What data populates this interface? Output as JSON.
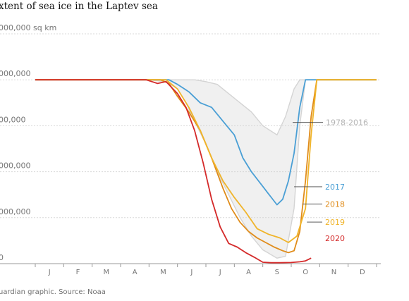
{
  "chart_data": {
    "type": "line",
    "title": "xtent of sea ice in the Laptev sea",
    "ylabel": "",
    "y_tick_labels": [
      {
        "value": 2500000,
        "label": "000,000 sq km"
      },
      {
        "value": 2000000,
        "label": "000,000"
      },
      {
        "value": 1500000,
        "label": "00,000"
      },
      {
        "value": 1000000,
        "label": "000,000"
      },
      {
        "value": 500000,
        "label": "000,000"
      },
      {
        "value": 0,
        "label": "0"
      }
    ],
    "ylim": [
      0,
      2500000
    ],
    "x_tick_labels": [
      "J",
      "F",
      "M",
      "A",
      "M",
      "J",
      "J",
      "A",
      "S",
      "O",
      "N",
      "D"
    ],
    "xlim": [
      0,
      12
    ],
    "grid": true,
    "colors": {
      "historical": "#d4d4d4",
      "2017": "#4a9fd5",
      "2018": "#e08c1a",
      "2019": "#f0b429",
      "2020": "#d42a2a",
      "grid": "#d8d8d8",
      "axis": "#999999"
    },
    "series": [
      {
        "name": "1978-2016",
        "is_envelope": true,
        "x": [
          0,
          3.9,
          4.6,
          5.0,
          5.3,
          5.6,
          6.0,
          6.4,
          6.8,
          7.2,
          7.6,
          8.0,
          8.5,
          8.8,
          9.1,
          9.3,
          9.5,
          12
        ],
        "lower": [
          2000000,
          2000000,
          1980000,
          1900000,
          1750000,
          1550000,
          1300000,
          1000000,
          750000,
          500000,
          300000,
          150000,
          60000,
          80000,
          600000,
          1500000,
          2000000,
          2000000
        ],
        "upper": [
          2000000,
          2000000,
          2000000,
          2000000,
          2000000,
          2000000,
          1980000,
          1950000,
          1850000,
          1750000,
          1650000,
          1500000,
          1400000,
          1600000,
          1900000,
          2000000,
          2000000,
          2000000
        ]
      },
      {
        "name": "2017",
        "x": [
          0,
          4.7,
          5.0,
          5.4,
          5.8,
          6.2,
          6.6,
          7.0,
          7.3,
          7.6,
          7.9,
          8.2,
          8.5,
          8.7,
          8.9,
          9.1,
          9.3,
          9.5,
          12
        ],
        "values": [
          2000000,
          2000000,
          1950000,
          1870000,
          1750000,
          1700000,
          1550000,
          1400000,
          1150000,
          1000000,
          880000,
          760000,
          640000,
          700000,
          900000,
          1200000,
          1700000,
          2000000,
          2000000
        ]
      },
      {
        "name": "2018",
        "x": [
          0,
          4.4,
          4.7,
          5.0,
          5.4,
          5.8,
          6.2,
          6.6,
          6.9,
          7.2,
          7.5,
          7.8,
          8.1,
          8.4,
          8.7,
          8.9,
          9.1,
          9.3,
          9.5,
          9.7,
          9.9,
          12
        ],
        "values": [
          2000000,
          2000000,
          1960000,
          1820000,
          1650000,
          1450000,
          1150000,
          820000,
          600000,
          450000,
          350000,
          280000,
          230000,
          180000,
          140000,
          120000,
          140000,
          350000,
          900000,
          1600000,
          2000000,
          2000000
        ]
      },
      {
        "name": "2019",
        "x": [
          0,
          4.6,
          5.0,
          5.4,
          5.8,
          6.2,
          6.6,
          7.0,
          7.4,
          7.8,
          8.2,
          8.6,
          8.9,
          9.2,
          9.5,
          9.7,
          9.9,
          12
        ],
        "values": [
          2000000,
          2000000,
          1900000,
          1700000,
          1450000,
          1150000,
          900000,
          720000,
          560000,
          380000,
          320000,
          280000,
          230000,
          300000,
          600000,
          1400000,
          2000000,
          2000000
        ]
      },
      {
        "name": "2020",
        "x": [
          0,
          3.9,
          4.3,
          4.6,
          5.0,
          5.3,
          5.6,
          5.9,
          6.2,
          6.5,
          6.8,
          7.1,
          7.4,
          7.7,
          8.0,
          8.3,
          8.6,
          9.0,
          9.3,
          9.5,
          9.7
        ],
        "values": [
          2000000,
          2000000,
          1960000,
          1980000,
          1850000,
          1700000,
          1450000,
          1100000,
          700000,
          400000,
          220000,
          180000,
          120000,
          70000,
          15000,
          10000,
          10000,
          12000,
          20000,
          30000,
          60000
        ]
      }
    ],
    "annotations": [
      {
        "text": "1978-2016",
        "series": "1978-2016",
        "x": 9.55,
        "y": 1010000
      },
      {
        "text": "2017",
        "series": "2017",
        "x": 9.15,
        "y": 1720000
      },
      {
        "text": "2018",
        "series": "2018",
        "x": 9.15,
        "y": 1910000
      },
      {
        "text": "2019",
        "series": "2019",
        "x": 9.15,
        "y": 2110000
      },
      {
        "text": "2020",
        "series": "2020",
        "x": 9.1,
        "y": 2290000
      }
    ]
  },
  "source": "uardian graphic. Source: Noaa"
}
